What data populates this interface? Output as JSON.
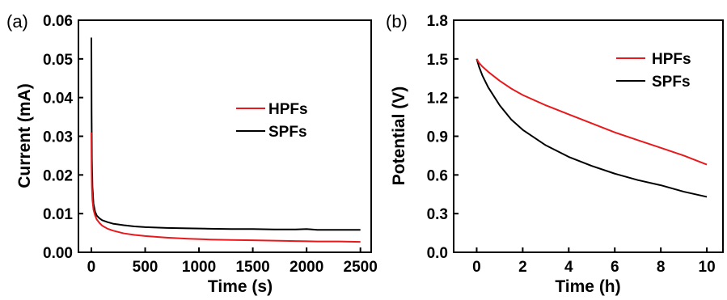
{
  "chart_data": [
    {
      "panel_label": "(a)",
      "type": "line",
      "xlabel": "Time (s)",
      "ylabel": "Current (mA)",
      "xlim": [
        -120,
        2600
      ],
      "ylim": [
        0,
        0.06
      ],
      "xticks": [
        0,
        500,
        1000,
        1500,
        2000,
        2500
      ],
      "xtick_labels": [
        "0",
        "500",
        "1000",
        "1500",
        "2000",
        "2500"
      ],
      "yticks": [
        0.0,
        0.01,
        0.02,
        0.03,
        0.04,
        0.05,
        0.06
      ],
      "ytick_labels": [
        "0.00",
        "0.01",
        "0.02",
        "0.03",
        "0.04",
        "0.05",
        "0.06"
      ],
      "grid": false,
      "legend_position": "center-right",
      "series": [
        {
          "name": "HPFs",
          "color": "#e8191c",
          "x": [
            0,
            2,
            5,
            10,
            20,
            35,
            50,
            75,
            100,
            150,
            200,
            300,
            400,
            500,
            700,
            900,
            1100,
            1300,
            1500,
            1700,
            1900,
            2100,
            2300,
            2500
          ],
          "y": [
            0.031,
            0.022,
            0.017,
            0.0135,
            0.011,
            0.0095,
            0.0085,
            0.0076,
            0.0069,
            0.0061,
            0.0056,
            0.0049,
            0.0045,
            0.0042,
            0.0038,
            0.0035,
            0.0033,
            0.0032,
            0.0031,
            0.003,
            0.0029,
            0.0028,
            0.0028,
            0.0027
          ]
        },
        {
          "name": "SPFs",
          "color": "#000000",
          "x": [
            0,
            2,
            5,
            10,
            20,
            35,
            50,
            75,
            100,
            150,
            200,
            300,
            400,
            500,
            700,
            900,
            1100,
            1300,
            1500,
            1700,
            1900,
            2000,
            2100,
            2300,
            2500
          ],
          "y": [
            0.0555,
            0.036,
            0.024,
            0.017,
            0.0125,
            0.0105,
            0.0095,
            0.0088,
            0.0083,
            0.0078,
            0.0074,
            0.007,
            0.0067,
            0.0065,
            0.0063,
            0.0062,
            0.0061,
            0.006,
            0.006,
            0.0059,
            0.0059,
            0.006,
            0.0058,
            0.0058,
            0.0058
          ]
        }
      ]
    },
    {
      "panel_label": "(b)",
      "type": "line",
      "xlabel": "Time (h)",
      "ylabel": "Potential (V)",
      "xlim": [
        -1,
        10.7
      ],
      "ylim": [
        0,
        1.8
      ],
      "xticks": [
        0,
        2,
        4,
        6,
        8,
        10
      ],
      "xtick_labels": [
        "0",
        "2",
        "4",
        "6",
        "8",
        "10"
      ],
      "yticks": [
        0.0,
        0.3,
        0.6,
        0.9,
        1.2,
        1.5,
        1.8
      ],
      "ytick_labels": [
        "0.0",
        "0.3",
        "0.6",
        "0.9",
        "1.2",
        "1.5",
        "1.8"
      ],
      "grid": false,
      "legend_position": "top-right",
      "series": [
        {
          "name": "HPFs",
          "color": "#e8191c",
          "x": [
            0,
            0.1,
            0.25,
            0.5,
            1,
            1.5,
            2,
            3,
            4,
            5,
            6,
            7,
            8,
            9,
            10
          ],
          "y": [
            1.5,
            1.47,
            1.44,
            1.4,
            1.33,
            1.27,
            1.22,
            1.14,
            1.07,
            1.0,
            0.93,
            0.87,
            0.81,
            0.75,
            0.68
          ]
        },
        {
          "name": "SPFs",
          "color": "#000000",
          "x": [
            0,
            0.1,
            0.25,
            0.5,
            1,
            1.5,
            2,
            3,
            4,
            5,
            6,
            7,
            8,
            9,
            10
          ],
          "y": [
            1.5,
            1.44,
            1.37,
            1.28,
            1.14,
            1.03,
            0.95,
            0.83,
            0.74,
            0.67,
            0.61,
            0.56,
            0.52,
            0.47,
            0.43
          ]
        }
      ]
    }
  ]
}
